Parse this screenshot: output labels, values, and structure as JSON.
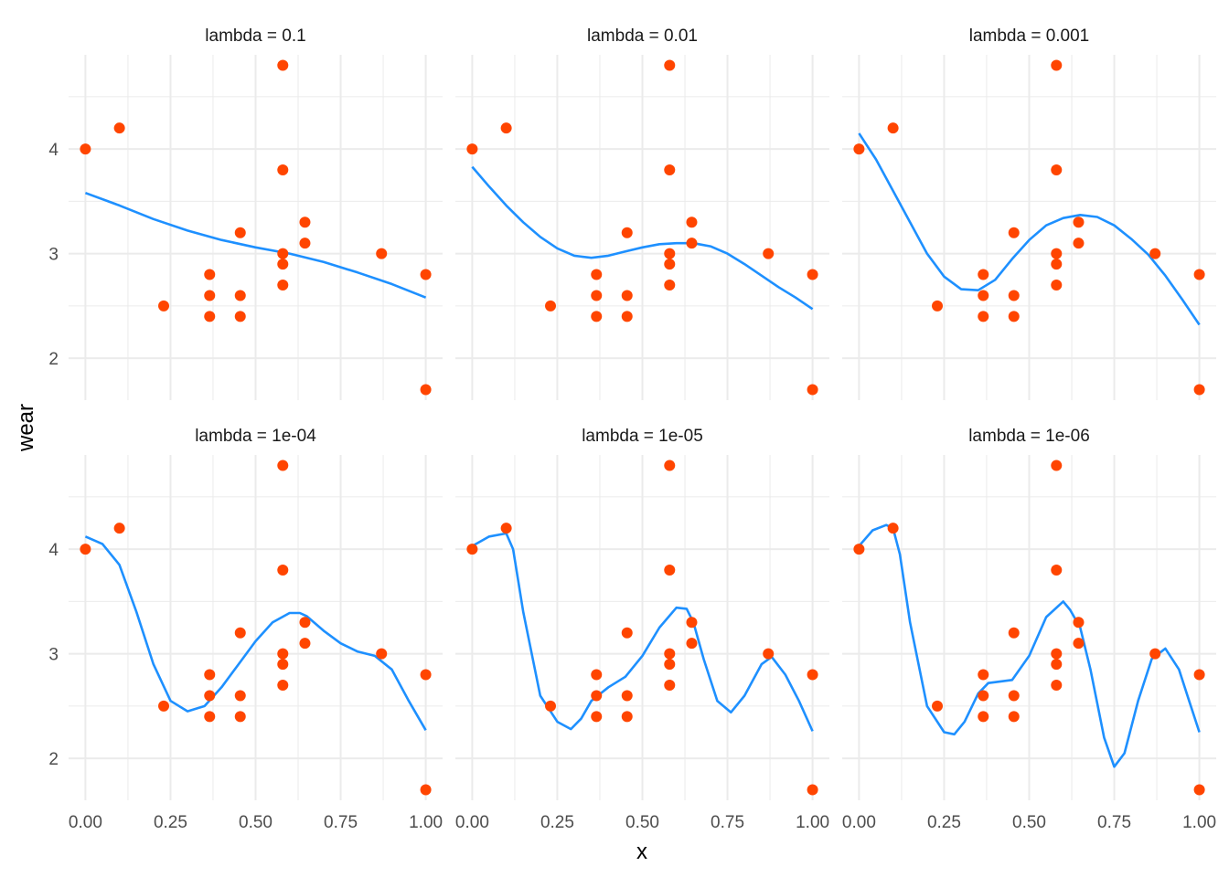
{
  "chart_data": {
    "type": "scatter",
    "facet_layout": "2 rows x 3 columns",
    "xlabel": "x",
    "ylabel": "wear",
    "xlim": [
      0,
      1
    ],
    "ylim": [
      1.6,
      4.9
    ],
    "x_ticks": [
      0,
      0.25,
      0.5,
      0.75,
      1
    ],
    "x_tick_labels": [
      "0.00",
      "0.25",
      "0.50",
      "0.75",
      "1.00"
    ],
    "y_ticks": [
      2,
      3,
      4
    ],
    "y_tick_labels": [
      "2",
      "3",
      "4"
    ],
    "grid": true,
    "point_color": "#FF4500",
    "curve_color": "#1E90FF",
    "points": {
      "x": [
        0.0,
        0.1,
        0.23,
        0.365,
        0.365,
        0.365,
        0.455,
        0.455,
        0.455,
        0.58,
        0.58,
        0.58,
        0.58,
        0.58,
        0.645,
        0.645,
        0.87,
        1.0,
        1.0
      ],
      "y": [
        4.0,
        4.2,
        2.5,
        2.8,
        2.6,
        2.4,
        3.2,
        2.6,
        2.4,
        4.8,
        3.8,
        3.0,
        2.9,
        2.7,
        3.3,
        3.1,
        3.0,
        2.8,
        1.7
      ]
    },
    "panels": [
      {
        "label": "lambda = 0.1",
        "curve_x": [
          0.0,
          0.1,
          0.2,
          0.3,
          0.4,
          0.5,
          0.6,
          0.7,
          0.8,
          0.9,
          1.0
        ],
        "curve_y": [
          3.58,
          3.46,
          3.33,
          3.22,
          3.13,
          3.06,
          3.0,
          2.92,
          2.82,
          2.71,
          2.58
        ]
      },
      {
        "label": "lambda = 0.01",
        "curve_x": [
          0.0,
          0.05,
          0.1,
          0.15,
          0.2,
          0.25,
          0.3,
          0.35,
          0.4,
          0.45,
          0.5,
          0.55,
          0.6,
          0.65,
          0.7,
          0.75,
          0.8,
          0.85,
          0.9,
          0.95,
          1.0
        ],
        "curve_y": [
          3.83,
          3.64,
          3.46,
          3.3,
          3.16,
          3.05,
          2.98,
          2.96,
          2.98,
          3.02,
          3.06,
          3.09,
          3.1,
          3.1,
          3.07,
          3.0,
          2.9,
          2.79,
          2.68,
          2.58,
          2.47
        ]
      },
      {
        "label": "lambda = 0.001",
        "curve_x": [
          0.0,
          0.05,
          0.1,
          0.15,
          0.2,
          0.25,
          0.3,
          0.35,
          0.4,
          0.45,
          0.5,
          0.55,
          0.6,
          0.65,
          0.7,
          0.75,
          0.8,
          0.85,
          0.9,
          0.95,
          1.0
        ],
        "curve_y": [
          4.15,
          3.9,
          3.6,
          3.3,
          3.0,
          2.78,
          2.66,
          2.65,
          2.75,
          2.95,
          3.13,
          3.27,
          3.34,
          3.37,
          3.35,
          3.27,
          3.14,
          2.99,
          2.79,
          2.56,
          2.32
        ]
      },
      {
        "label": "lambda = 1e-04",
        "curve_x": [
          0.0,
          0.05,
          0.1,
          0.15,
          0.2,
          0.25,
          0.3,
          0.35,
          0.4,
          0.45,
          0.5,
          0.55,
          0.6,
          0.63,
          0.65,
          0.7,
          0.75,
          0.8,
          0.85,
          0.9,
          0.95,
          1.0
        ],
        "curve_y": [
          4.12,
          4.05,
          3.85,
          3.4,
          2.9,
          2.55,
          2.45,
          2.5,
          2.68,
          2.9,
          3.12,
          3.3,
          3.39,
          3.39,
          3.36,
          3.22,
          3.1,
          3.02,
          2.98,
          2.85,
          2.55,
          2.27
        ]
      },
      {
        "label": "lambda = 1e-05",
        "curve_x": [
          0.0,
          0.05,
          0.1,
          0.12,
          0.15,
          0.2,
          0.25,
          0.29,
          0.32,
          0.35,
          0.4,
          0.45,
          0.5,
          0.55,
          0.6,
          0.63,
          0.65,
          0.68,
          0.72,
          0.76,
          0.8,
          0.85,
          0.88,
          0.92,
          0.96,
          1.0
        ],
        "curve_y": [
          4.03,
          4.12,
          4.15,
          4.0,
          3.4,
          2.6,
          2.35,
          2.28,
          2.38,
          2.55,
          2.68,
          2.78,
          2.98,
          3.25,
          3.44,
          3.43,
          3.3,
          2.95,
          2.55,
          2.44,
          2.6,
          2.9,
          2.97,
          2.8,
          2.55,
          2.26
        ]
      },
      {
        "label": "lambda = 1e-06",
        "curve_x": [
          0.0,
          0.04,
          0.08,
          0.1,
          0.12,
          0.15,
          0.2,
          0.25,
          0.28,
          0.31,
          0.35,
          0.38,
          0.45,
          0.5,
          0.55,
          0.6,
          0.62,
          0.65,
          0.68,
          0.72,
          0.75,
          0.78,
          0.82,
          0.86,
          0.9,
          0.94,
          0.97,
          1.0
        ],
        "curve_y": [
          4.03,
          4.18,
          4.23,
          4.2,
          3.95,
          3.3,
          2.5,
          2.25,
          2.23,
          2.35,
          2.62,
          2.72,
          2.75,
          2.98,
          3.35,
          3.5,
          3.42,
          3.25,
          2.85,
          2.2,
          1.92,
          2.05,
          2.55,
          2.95,
          3.05,
          2.85,
          2.55,
          2.25
        ]
      }
    ]
  }
}
